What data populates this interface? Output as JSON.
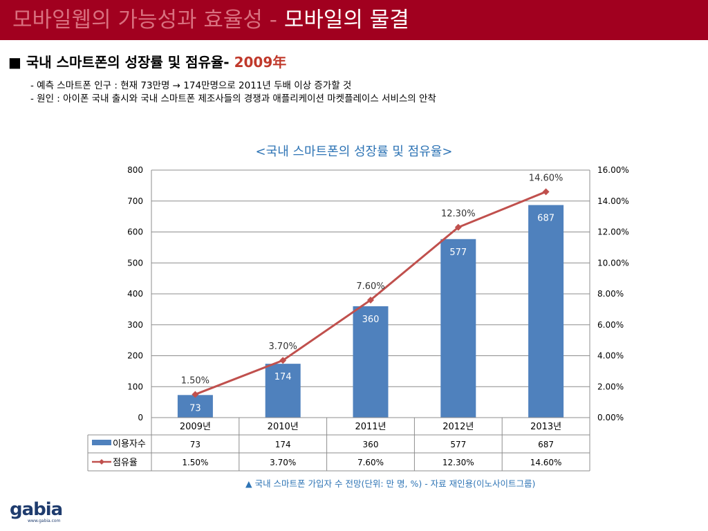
{
  "header": {
    "title_main": "모바일웹의 가능성과 효율성 - ",
    "title_sub": "모바일의 물결"
  },
  "heading": {
    "text": "■ 국내 스마트폰의 성장률 및 점유율- ",
    "year": "2009年"
  },
  "bullets": [
    "- 예측 스마트폰 인구 : 현재  73만명 → 174만명으로 2011년 두배 이상 증가할 것",
    "- 원인 : 아이폰 국내 출시와 국내 스마트폰 제조사들의 경쟁과 애플리케이션 마켓플레이스 서비스의 안착"
  ],
  "chart_data": {
    "type": "bar",
    "title": "<국내 스마트폰의 성장률 및 점유율>",
    "categories": [
      "2009년",
      "2010년",
      "2011년",
      "2012년",
      "2013년"
    ],
    "series": [
      {
        "name": "이용자수",
        "kind": "bar",
        "axis": "left",
        "values": [
          73,
          174,
          360,
          577,
          687
        ],
        "labels": [
          "73",
          "174",
          "360",
          "577",
          "687"
        ],
        "color": "#4f81bd"
      },
      {
        "name": "점유율",
        "kind": "line",
        "axis": "right",
        "values": [
          1.5,
          3.7,
          7.6,
          12.3,
          14.6
        ],
        "labels": [
          "1.50%",
          "3.70%",
          "7.60%",
          "12.30%",
          "14.60%"
        ],
        "color": "#c0504d"
      }
    ],
    "ylim_left": [
      0,
      800
    ],
    "yticks_left": [
      "0",
      "100",
      "200",
      "300",
      "400",
      "500",
      "600",
      "700",
      "800"
    ],
    "ylim_right": [
      0,
      16
    ],
    "yticks_right": [
      "0.00%",
      "2.00%",
      "4.00%",
      "6.00%",
      "8.00%",
      "10.00%",
      "12.00%",
      "14.00%",
      "16.00%"
    ],
    "grid": true,
    "legend": "data-table",
    "table": {
      "rows": [
        {
          "name": "이용자수",
          "cells": [
            "73",
            "174",
            "360",
            "577",
            "687"
          ]
        },
        {
          "name": "점유율",
          "cells": [
            "1.50%",
            "3.70%",
            "7.60%",
            "12.30%",
            "14.60%"
          ]
        }
      ]
    }
  },
  "footnote": "▲ 국내 스마트폰 가입자 수 전망(단위: 만 명, %) - 자료 재인용(이노사이트그룹)",
  "logo": {
    "text": "gabia",
    "url": "www.gabia.com"
  }
}
